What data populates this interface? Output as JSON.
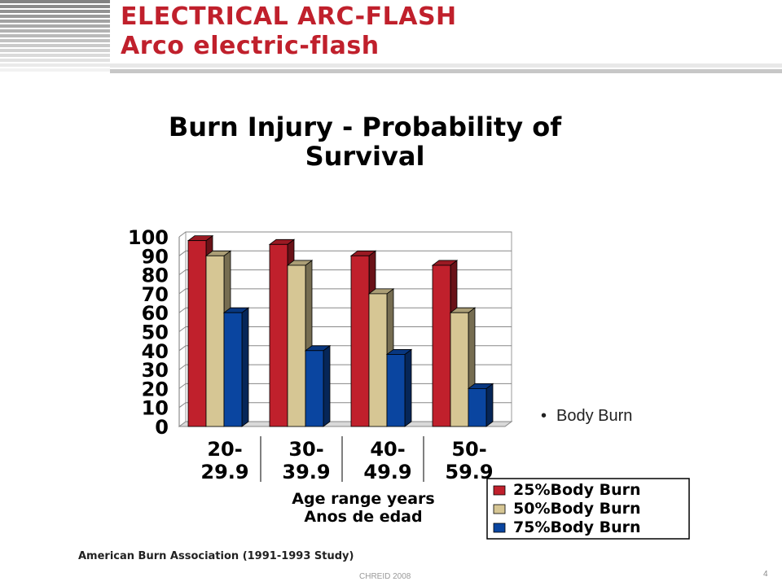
{
  "slide": {
    "title_line1": "ELECTRICAL ARC-FLASH",
    "title_line2": "Arco electric-flash",
    "bullet": "Body Burn",
    "source": "American Burn Association (1991-1993 Study)",
    "footer": "CHREID 2008",
    "page_number": "4",
    "accent_color": "#c0202c"
  },
  "chart_data": {
    "type": "bar",
    "title_lines": [
      "Burn Injury - Probability of",
      "Survival"
    ],
    "categories": [
      [
        "20-",
        "29.9"
      ],
      [
        "30-",
        "39.9"
      ],
      [
        "40-",
        "49.9"
      ],
      [
        "50-",
        "59.9"
      ]
    ],
    "xlabel_lines": [
      "Age range years",
      "Anos  de edad"
    ],
    "ylim": [
      0,
      100
    ],
    "yticks": [
      "0",
      "10",
      "20",
      "30",
      "40",
      "50",
      "60",
      "70",
      "80",
      "90",
      "100"
    ],
    "grid": true,
    "legend_position": "bottom-right",
    "series": [
      {
        "name": "25%Body Burn",
        "color": "#c0202c",
        "values": [
          98,
          96,
          90,
          85
        ]
      },
      {
        "name": "50%Body Burn",
        "color": "#d6c694",
        "values": [
          90,
          85,
          70,
          60
        ]
      },
      {
        "name": "75%Body Burn",
        "color": "#0a45a0",
        "values": [
          60,
          40,
          38,
          20
        ]
      }
    ]
  }
}
